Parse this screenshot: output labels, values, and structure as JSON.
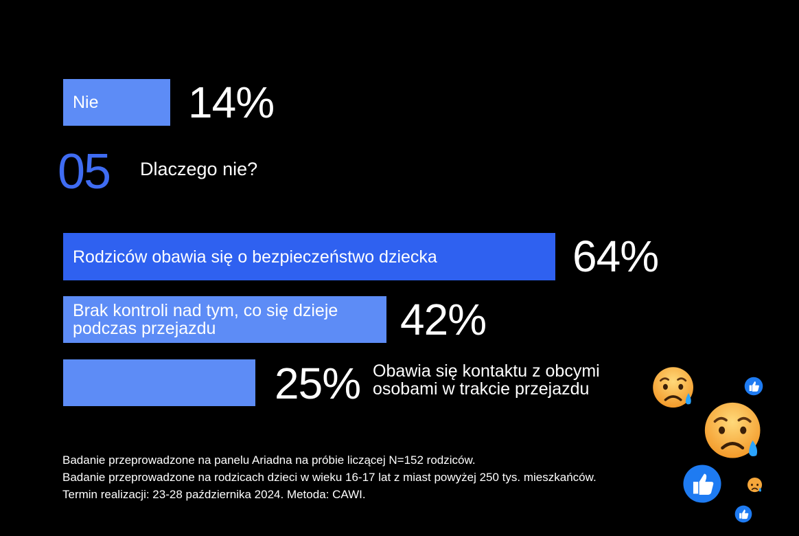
{
  "top_answer": {
    "label": "Nie",
    "value_label": "14%"
  },
  "question": {
    "number": "05",
    "text": "Dlaczego nie?"
  },
  "chart_data": {
    "type": "bar",
    "orientation": "horizontal",
    "categories": [
      "Rodziców obawia się o bezpieczeństwo dziecka",
      "Brak kontroli nad tym, co się dzieje podczas przejazdu",
      "Obawia się kontaktu z obcymi osobami w trakcie przejazdu"
    ],
    "values": [
      64,
      42,
      25
    ],
    "value_labels": [
      "64%",
      "42%",
      "25%"
    ],
    "colors": [
      "#2f61f0",
      "#5d8cf6",
      "#5d8cf6"
    ]
  },
  "colors": {
    "background": "#000000",
    "accent": "#3f6cf2",
    "bar_light": "#5d8cf6",
    "bar_dark": "#2f61f0"
  },
  "notes": [
    "Badanie przeprowadzone na panelu Ariadna na próbie liczącej N=152 rodziców.",
    "Badanie przeprowadzone na rodzicach dzieci w wieku 16-17 lat z miast powyżej 250 tys. mieszkańców.",
    "Termin realizacji: 23-28 października 2024. Metoda: CAWI."
  ],
  "decorations": [
    "sad-face-emoji",
    "sad-face-emoji",
    "sad-face-emoji",
    "thumbs-up-icon",
    "thumbs-up-icon",
    "thumbs-up-icon"
  ]
}
